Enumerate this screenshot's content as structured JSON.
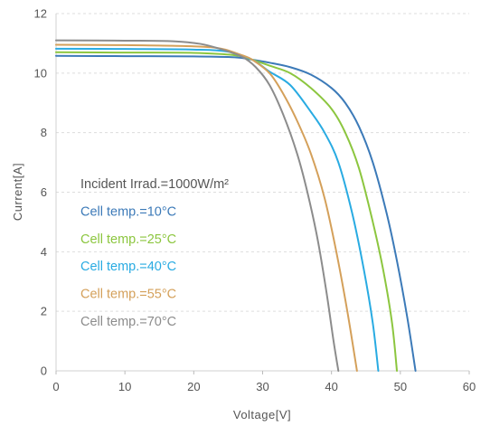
{
  "chart_data": {
    "type": "line",
    "xlabel": "Voltage[V]",
    "ylabel": "Current[A]",
    "xlim": [
      0,
      60
    ],
    "ylim": [
      0,
      12
    ],
    "x_ticks": [
      0,
      10,
      20,
      30,
      40,
      50,
      60
    ],
    "y_ticks": [
      0,
      2,
      4,
      6,
      8,
      10,
      12
    ],
    "grid": "horizontal dashed",
    "legend_placement": "left-middle",
    "legend_header": "Incident Irrad.=1000W/m²",
    "series": [
      {
        "name": "Cell temp.=10°C",
        "color": "#3c7ab8",
        "isc": 10.58,
        "points": [
          [
            0,
            10.58
          ],
          [
            10,
            10.57
          ],
          [
            20,
            10.56
          ],
          [
            26,
            10.53
          ],
          [
            28.5,
            10.45
          ],
          [
            31,
            10.35
          ],
          [
            34,
            10.2
          ],
          [
            37,
            9.95
          ],
          [
            40,
            9.5
          ],
          [
            42,
            9.0
          ],
          [
            44,
            8.2
          ],
          [
            46,
            7.0
          ],
          [
            48,
            5.3
          ],
          [
            49.5,
            3.7
          ],
          [
            51,
            1.8
          ],
          [
            52.2,
            0
          ]
        ]
      },
      {
        "name": "Cell temp.=25°C",
        "color": "#8cc63f",
        "isc": 10.7,
        "points": [
          [
            0,
            10.7
          ],
          [
            10,
            10.69
          ],
          [
            20,
            10.68
          ],
          [
            26,
            10.6
          ],
          [
            28.5,
            10.45
          ],
          [
            31,
            10.25
          ],
          [
            34,
            10.0
          ],
          [
            37,
            9.5
          ],
          [
            40,
            8.8
          ],
          [
            42,
            8.0
          ],
          [
            44,
            6.8
          ],
          [
            46,
            5.0
          ],
          [
            47.5,
            3.4
          ],
          [
            48.8,
            1.6
          ],
          [
            49.5,
            0
          ]
        ]
      },
      {
        "name": "Cell temp.=40°C",
        "color": "#29abe2",
        "isc": 10.82,
        "points": [
          [
            0,
            10.82
          ],
          [
            10,
            10.81
          ],
          [
            20,
            10.79
          ],
          [
            25,
            10.72
          ],
          [
            28.5,
            10.45
          ],
          [
            31,
            10.05
          ],
          [
            34,
            9.6
          ],
          [
            37,
            8.7
          ],
          [
            39,
            8.0
          ],
          [
            41,
            7.0
          ],
          [
            43,
            5.3
          ],
          [
            44.7,
            3.4
          ],
          [
            46,
            1.6
          ],
          [
            46.8,
            0
          ]
        ]
      },
      {
        "name": "Cell temp.=55°C",
        "color": "#d4a05a",
        "isc": 10.95,
        "points": [
          [
            0,
            10.95
          ],
          [
            10,
            10.94
          ],
          [
            20,
            10.9
          ],
          [
            24,
            10.82
          ],
          [
            27,
            10.6
          ],
          [
            28.5,
            10.45
          ],
          [
            31,
            10.0
          ],
          [
            33,
            9.3
          ],
          [
            35,
            8.4
          ],
          [
            37,
            7.3
          ],
          [
            39,
            5.8
          ],
          [
            40.7,
            4.0
          ],
          [
            42.3,
            2.0
          ],
          [
            43.7,
            0
          ]
        ]
      },
      {
        "name": "Cell temp.=70°C",
        "color": "#8c8c8c",
        "isc": 11.1,
        "points": [
          [
            0,
            11.1
          ],
          [
            10,
            11.09
          ],
          [
            17,
            11.07
          ],
          [
            21,
            10.98
          ],
          [
            24,
            10.8
          ],
          [
            27,
            10.55
          ],
          [
            29,
            10.2
          ],
          [
            31,
            9.6
          ],
          [
            33,
            8.6
          ],
          [
            35,
            7.3
          ],
          [
            36.5,
            6.0
          ],
          [
            38,
            4.4
          ],
          [
            39.3,
            2.6
          ],
          [
            40.3,
            1.0
          ],
          [
            41,
            0
          ]
        ]
      }
    ]
  }
}
